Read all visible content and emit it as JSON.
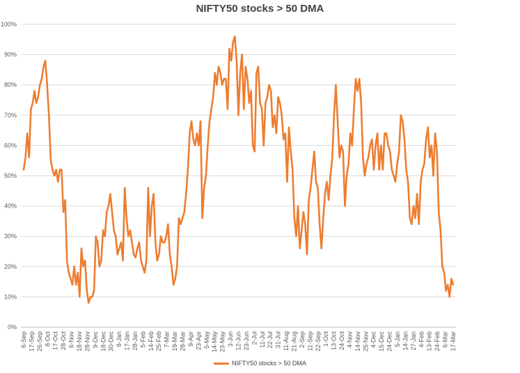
{
  "chart_data": {
    "type": "line",
    "title": "NIFTY50 stocks > 50 DMA",
    "xlabel": "",
    "ylabel": "",
    "ylim": [
      0,
      100
    ],
    "y_ticks": [
      "0%",
      "10%",
      "20%",
      "30%",
      "40%",
      "50%",
      "60%",
      "70%",
      "80%",
      "90%",
      "100%"
    ],
    "grid": true,
    "legend_position": "bottom-center",
    "x_tick_labels": [
      "6-Sep",
      "17-Sep",
      "26-Sep",
      "8-Oct",
      "17-Oct",
      "28-Oct",
      "6-Nov",
      "18-Nov",
      "28-Nov",
      "9-Dec",
      "18-Dec",
      "30-Dec",
      "8-Jan",
      "17-Jan",
      "28-Jan",
      "5-Feb",
      "14-Feb",
      "25-Feb",
      "7-Mar",
      "19-Mar",
      "28-Mar",
      "9-Apr",
      "23-Apr",
      "5-May",
      "14-May",
      "23-May",
      "3-Jun",
      "12-Jun",
      "23-Jun",
      "2-Jul",
      "11-Jul",
      "22-Jul",
      "31-Jul",
      "11-Aug",
      "21-Aug",
      "2-Sep",
      "11-Sep",
      "22-Sep",
      "1-Oct",
      "13-Oct",
      "24-Oct",
      "4-Nov",
      "14-Nov",
      "25-Nov",
      "4-Dec",
      "15-Dec",
      "24-Dec",
      "5-Jan",
      "14-Jan",
      "27-Jan",
      "4-Feb",
      "13-Feb",
      "24-Feb",
      "6-Mar",
      "17-Mar"
    ],
    "series": [
      {
        "name": "NIFTY50 stocks > 50 DMA",
        "color": "#ed7d31",
        "values": [
          52,
          56,
          64,
          56,
          72,
          74,
          78,
          74,
          76,
          80,
          82,
          86,
          88,
          80,
          70,
          55,
          52,
          50,
          52,
          48,
          52,
          52,
          38,
          42,
          22,
          18,
          16,
          14,
          20,
          14,
          18,
          10,
          26,
          20,
          22,
          12,
          8,
          10,
          10,
          12,
          30,
          28,
          20,
          22,
          32,
          30,
          38,
          40,
          44,
          38,
          32,
          30,
          24,
          26,
          28,
          22,
          46,
          36,
          30,
          32,
          28,
          24,
          23,
          26,
          28,
          22,
          20,
          18,
          22,
          46,
          30,
          40,
          44,
          28,
          22,
          24,
          30,
          28,
          28,
          30,
          34,
          24,
          20,
          14,
          16,
          20,
          36,
          34,
          36,
          38,
          44,
          52,
          64,
          68,
          62,
          60,
          64,
          60,
          68,
          36,
          46,
          50,
          60,
          68,
          72,
          76,
          84,
          80,
          86,
          84,
          80,
          82,
          82,
          72,
          92,
          88,
          94,
          96,
          88,
          70,
          84,
          90,
          72,
          86,
          82,
          74,
          78,
          60,
          58,
          84,
          86,
          74,
          72,
          60,
          74,
          76,
          80,
          78,
          66,
          70,
          64,
          76,
          74,
          70,
          62,
          64,
          48,
          66,
          58,
          52,
          36,
          30,
          40,
          26,
          32,
          38,
          34,
          24,
          42,
          46,
          52,
          58,
          48,
          46,
          34,
          26,
          36,
          44,
          48,
          42,
          50,
          56,
          70,
          80,
          68,
          56,
          60,
          58,
          40,
          50,
          54,
          64,
          60,
          72,
          82,
          78,
          82,
          74,
          56,
          50,
          54,
          56,
          60,
          62,
          52,
          60,
          64,
          52,
          60,
          52,
          64,
          64,
          60,
          58,
          52,
          50,
          48,
          54,
          58,
          70,
          68,
          62,
          52,
          48,
          36,
          34,
          40,
          36,
          44,
          34,
          48,
          52,
          54,
          62,
          66,
          56,
          60,
          50,
          64,
          58,
          38,
          32,
          20,
          18,
          12,
          14,
          10,
          16,
          14
        ]
      }
    ]
  }
}
